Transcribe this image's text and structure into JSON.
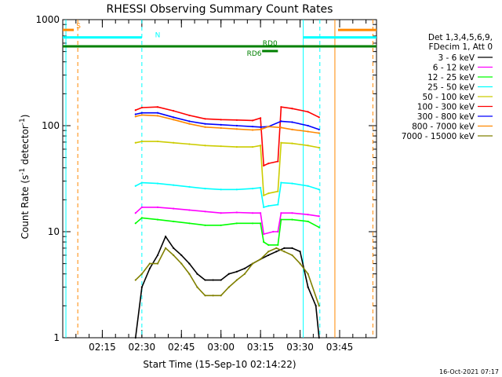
{
  "chart_data": {
    "type": "line",
    "title": "RHESSI Observing Summary Count Rates",
    "xlabel": "Start Time (15-Sep-10 02:14:22)",
    "ylabel_main": "Count Rate (s",
    "ylabel_sup1": "-1",
    "ylabel_mid": " detector",
    "ylabel_sup2": "-1",
    "ylabel_end": ")",
    "yscale": "log",
    "ylim": [
      1,
      1000
    ],
    "xlim_minutes": [
      2.0,
      3.983
    ],
    "x_ticks": [
      "02:15",
      "02:30",
      "02:45",
      "03:00",
      "03:15",
      "03:30",
      "03:45"
    ],
    "x_tick_values": [
      2.25,
      2.5,
      2.75,
      3.0,
      3.25,
      3.5,
      3.75
    ],
    "y_ticks": [
      "1",
      "10",
      "100",
      "1000"
    ],
    "y_tick_values": [
      1,
      10,
      100,
      1000
    ],
    "legend_header": [
      "Det 1,3,4,5,6,9,",
      "FDecim 1, Att 0"
    ],
    "series": [
      {
        "name": "3 - 6 keV",
        "color": "#000000",
        "values": [
          [
            2.46,
            1
          ],
          [
            2.5,
            3
          ],
          [
            2.55,
            4.5
          ],
          [
            2.6,
            6
          ],
          [
            2.65,
            9
          ],
          [
            2.7,
            7
          ],
          [
            2.75,
            6
          ],
          [
            2.8,
            5
          ],
          [
            2.85,
            4
          ],
          [
            2.9,
            3.5
          ],
          [
            2.95,
            3.5
          ],
          [
            3.0,
            3.5
          ],
          [
            3.05,
            4
          ],
          [
            3.1,
            4.2
          ],
          [
            3.15,
            4.5
          ],
          [
            3.2,
            5
          ],
          [
            3.25,
            5.5
          ],
          [
            3.3,
            6
          ],
          [
            3.35,
            6.5
          ],
          [
            3.4,
            7
          ],
          [
            3.45,
            7
          ],
          [
            3.5,
            6.5
          ],
          [
            3.55,
            3
          ],
          [
            3.6,
            2
          ],
          [
            3.62,
            1
          ]
        ]
      },
      {
        "name": "6 - 12 keV",
        "color": "#ff00ff",
        "values": [
          [
            2.46,
            15
          ],
          [
            2.5,
            17
          ],
          [
            2.6,
            17
          ],
          [
            2.7,
            16.5
          ],
          [
            2.8,
            16
          ],
          [
            2.9,
            15.5
          ],
          [
            3.0,
            15
          ],
          [
            3.1,
            15.2
          ],
          [
            3.2,
            15
          ],
          [
            3.25,
            15
          ],
          [
            3.27,
            9.5
          ],
          [
            3.33,
            10
          ],
          [
            3.36,
            10
          ],
          [
            3.38,
            15
          ],
          [
            3.45,
            15
          ],
          [
            3.55,
            14.5
          ],
          [
            3.62,
            14
          ]
        ]
      },
      {
        "name": "12 - 25 keV",
        "color": "#00ff00",
        "values": [
          [
            2.46,
            12
          ],
          [
            2.5,
            13.5
          ],
          [
            2.6,
            13
          ],
          [
            2.7,
            12.5
          ],
          [
            2.8,
            12
          ],
          [
            2.9,
            11.5
          ],
          [
            3.0,
            11.5
          ],
          [
            3.1,
            12
          ],
          [
            3.2,
            12
          ],
          [
            3.25,
            12
          ],
          [
            3.27,
            8
          ],
          [
            3.3,
            7.5
          ],
          [
            3.36,
            7.5
          ],
          [
            3.38,
            13
          ],
          [
            3.45,
            13
          ],
          [
            3.55,
            12.5
          ],
          [
            3.62,
            11
          ]
        ]
      },
      {
        "name": "25 - 50 keV",
        "color": "#00ffff",
        "values": [
          [
            2.46,
            27
          ],
          [
            2.5,
            29
          ],
          [
            2.6,
            28.5
          ],
          [
            2.7,
            27.5
          ],
          [
            2.8,
            26.5
          ],
          [
            2.9,
            25.5
          ],
          [
            3.0,
            25
          ],
          [
            3.1,
            25
          ],
          [
            3.2,
            25.5
          ],
          [
            3.25,
            26
          ],
          [
            3.27,
            17
          ],
          [
            3.3,
            17.5
          ],
          [
            3.36,
            18
          ],
          [
            3.38,
            29
          ],
          [
            3.45,
            28.5
          ],
          [
            3.55,
            27
          ],
          [
            3.62,
            25
          ]
        ]
      },
      {
        "name": "50 - 100 keV",
        "color": "#cccc00",
        "values": [
          [
            2.46,
            69
          ],
          [
            2.5,
            71
          ],
          [
            2.6,
            71
          ],
          [
            2.7,
            69
          ],
          [
            2.8,
            67
          ],
          [
            2.9,
            65
          ],
          [
            3.0,
            64
          ],
          [
            3.1,
            63
          ],
          [
            3.2,
            63
          ],
          [
            3.25,
            65
          ],
          [
            3.27,
            22
          ],
          [
            3.3,
            23
          ],
          [
            3.36,
            24
          ],
          [
            3.38,
            69
          ],
          [
            3.45,
            68
          ],
          [
            3.55,
            65
          ],
          [
            3.62,
            62
          ]
        ]
      },
      {
        "name": "100 - 300 keV",
        "color": "#ff0000",
        "values": [
          [
            2.46,
            140
          ],
          [
            2.5,
            148
          ],
          [
            2.6,
            150
          ],
          [
            2.7,
            138
          ],
          [
            2.8,
            125
          ],
          [
            2.9,
            116
          ],
          [
            3.0,
            114
          ],
          [
            3.1,
            113
          ],
          [
            3.2,
            112
          ],
          [
            3.25,
            118
          ],
          [
            3.27,
            42
          ],
          [
            3.3,
            44
          ],
          [
            3.36,
            46
          ],
          [
            3.38,
            150
          ],
          [
            3.45,
            145
          ],
          [
            3.55,
            135
          ],
          [
            3.62,
            120
          ]
        ]
      },
      {
        "name": "300 - 800 keV",
        "color": "#0000ff",
        "values": [
          [
            2.46,
            128
          ],
          [
            2.5,
            132
          ],
          [
            2.6,
            132
          ],
          [
            2.7,
            120
          ],
          [
            2.8,
            110
          ],
          [
            2.9,
            104
          ],
          [
            3.0,
            102
          ],
          [
            3.1,
            100
          ],
          [
            3.2,
            98
          ],
          [
            3.25,
            97
          ],
          [
            3.3,
            98
          ],
          [
            3.38,
            110
          ],
          [
            3.45,
            108
          ],
          [
            3.55,
            100
          ],
          [
            3.62,
            92
          ]
        ]
      },
      {
        "name": "800 - 7000 keV",
        "color": "#ff8800",
        "values": [
          [
            2.46,
            122
          ],
          [
            2.5,
            126
          ],
          [
            2.6,
            124
          ],
          [
            2.7,
            114
          ],
          [
            2.8,
            104
          ],
          [
            2.9,
            97
          ],
          [
            3.0,
            95
          ],
          [
            3.1,
            93
          ],
          [
            3.2,
            91
          ],
          [
            3.25,
            92
          ],
          [
            3.3,
            98
          ],
          [
            3.38,
            96
          ],
          [
            3.45,
            92
          ],
          [
            3.55,
            88
          ],
          [
            3.62,
            85
          ]
        ]
      },
      {
        "name": "7000 - 15000 keV",
        "color": "#808000",
        "values": [
          [
            2.46,
            3.5
          ],
          [
            2.5,
            4
          ],
          [
            2.55,
            5
          ],
          [
            2.6,
            5
          ],
          [
            2.65,
            7
          ],
          [
            2.7,
            6
          ],
          [
            2.75,
            5
          ],
          [
            2.8,
            4
          ],
          [
            2.85,
            3
          ],
          [
            2.9,
            2.5
          ],
          [
            2.95,
            2.5
          ],
          [
            3.0,
            2.5
          ],
          [
            3.05,
            3
          ],
          [
            3.1,
            3.5
          ],
          [
            3.15,
            4
          ],
          [
            3.2,
            5
          ],
          [
            3.25,
            5.5
          ],
          [
            3.3,
            6.5
          ],
          [
            3.35,
            7
          ],
          [
            3.4,
            6.5
          ],
          [
            3.45,
            6
          ],
          [
            3.5,
            5
          ],
          [
            3.55,
            4
          ],
          [
            3.62,
            2
          ]
        ]
      }
    ],
    "flags": [
      {
        "label": "S",
        "color": "#ff8800",
        "x_start": 2.0,
        "x_end": 2.07,
        "level": 800
      },
      {
        "label": "S",
        "color": "#ff8800",
        "x_start": 3.74,
        "x_end": 3.983,
        "level": 800
      },
      {
        "label": "N",
        "color": "#00ffff",
        "x_start": 2.0,
        "x_end": 2.5,
        "level": 680
      },
      {
        "label": "N",
        "color": "#00ffff",
        "x_start": 3.52,
        "x_end": 3.983,
        "level": 680
      },
      {
        "label": "RD0",
        "color": "#008000",
        "x_start": 2.0,
        "x_end": 3.983,
        "level": 560
      },
      {
        "label": "RD6",
        "color": "#008000",
        "x_start": 3.26,
        "x_end": 3.36,
        "level": 505
      }
    ],
    "flag_labels": [
      {
        "text": "S",
        "x": 2.1,
        "level": 870,
        "color": "#ff8800"
      },
      {
        "text": "N",
        "x": 2.6,
        "level": 720,
        "color": "#00ffff"
      },
      {
        "text": "RD0",
        "x": 3.31,
        "level": 600,
        "color": "#008000"
      },
      {
        "text": "RD6",
        "x": 3.21,
        "level": 480,
        "color": "#008000"
      }
    ],
    "vertical_markers": [
      {
        "x": 2.02,
        "color": "#00ffff",
        "style": "solid"
      },
      {
        "x": 2.095,
        "color": "#ff8800",
        "style": "dashed"
      },
      {
        "x": 2.5,
        "color": "#00ffff",
        "style": "dashed"
      },
      {
        "x": 3.52,
        "color": "#00ffff",
        "style": "solid"
      },
      {
        "x": 3.625,
        "color": "#00ffff",
        "style": "dashed"
      },
      {
        "x": 3.72,
        "color": "#ff8800",
        "style": "solid"
      },
      {
        "x": 3.96,
        "color": "#ff8800",
        "style": "dashed"
      }
    ],
    "footer_date": "16-Oct-2021 07:17"
  }
}
